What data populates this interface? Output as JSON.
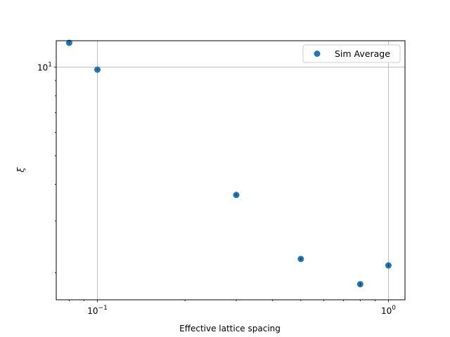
{
  "chart_data": {
    "type": "scatter",
    "title": "",
    "xlabel": "Effective lattice spacing",
    "ylabel": "ξ",
    "xscale": "log",
    "yscale": "log",
    "xlim": [
      0.0722,
      1.14
    ],
    "ylim": [
      1.62,
      12.3
    ],
    "xticks": [
      {
        "value": 0.1,
        "base": "10",
        "exp": "−1"
      },
      {
        "value": 1,
        "base": "10",
        "exp": "0"
      }
    ],
    "yticks": [
      {
        "value": 10,
        "base": "10",
        "exp": "1"
      }
    ],
    "grid": true,
    "legend_position": "top-right",
    "series": [
      {
        "name": "Sim Average",
        "color": "#1f77b4",
        "marker": "circle",
        "x": [
          0.08,
          0.1,
          0.3,
          0.5,
          0.8,
          1.0
        ],
        "y": [
          12.1,
          9.81,
          3.68,
          2.23,
          1.83,
          2.12
        ],
        "yerr": [
          0.05,
          0.05,
          0.03,
          0.02,
          0.02,
          0.02
        ]
      }
    ]
  }
}
